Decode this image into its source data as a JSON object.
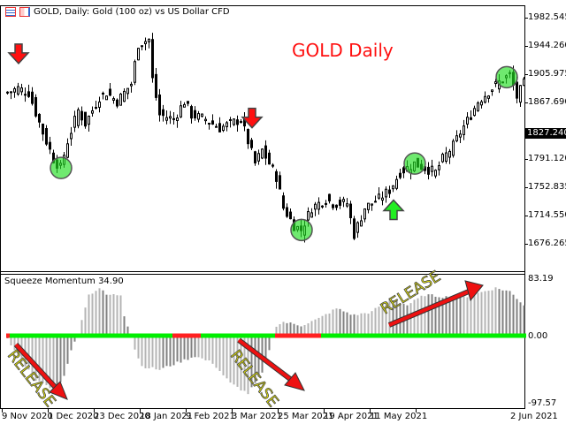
{
  "header": {
    "title": "GOLD, Daily:  Gold (100 oz) vs US Dollar CFD",
    "icons": [
      "chart-list-icon",
      "chart-settings-icon"
    ]
  },
  "annotation_title": "GOLD Daily",
  "price_axis": {
    "ticks": [
      "1982.545",
      "1944.260",
      "1905.975",
      "1867.690",
      "1791.120",
      "1752.835",
      "1714.550",
      "1676.265"
    ],
    "tick_values": [
      1982.545,
      1944.26,
      1905.975,
      1867.69,
      1791.12,
      1752.835,
      1714.55,
      1676.265
    ],
    "current_price": "1827.240"
  },
  "indicator": {
    "title": "Squeeze Momentum 34.90",
    "axis": {
      "max": "83.19",
      "zero": "0.00",
      "min": "-97.57"
    },
    "release_label": "RELEASE"
  },
  "date_axis": [
    "9 Nov 2020",
    "1 Dec 2020",
    "23 Dec 2020",
    "18 Jan 2021",
    "9 Feb 2021",
    "3 Mar 2021",
    "25 Mar 2021",
    "19 Apr 2021",
    "11 May 2021",
    "2 Jun 2021"
  ],
  "colors": {
    "squeeze_on": "#ff2020",
    "squeeze_off": "#00ee00",
    "signal_down": "#ff1010",
    "signal_up": "#22ee22",
    "histogram_light": "#b4b4b4",
    "histogram_dark": "#808080"
  },
  "chart_data": [
    {
      "type": "candlestick",
      "title": "GOLD, Daily",
      "ylim": [
        1660,
        1990
      ],
      "close_keypoints": [
        [
          0,
          1881
        ],
        [
          3,
          1887
        ],
        [
          6,
          1881
        ],
        [
          10,
          1827
        ],
        [
          13,
          1791
        ],
        [
          15,
          1779
        ],
        [
          17,
          1815
        ],
        [
          20,
          1857
        ],
        [
          22,
          1839
        ],
        [
          26,
          1875
        ],
        [
          28,
          1881
        ],
        [
          31,
          1869
        ],
        [
          35,
          1893
        ],
        [
          37,
          1947
        ],
        [
          40,
          1953
        ],
        [
          41,
          1899
        ],
        [
          43,
          1851
        ],
        [
          47,
          1845
        ],
        [
          50,
          1869
        ],
        [
          52,
          1851
        ],
        [
          56,
          1845
        ],
        [
          60,
          1833
        ],
        [
          63,
          1839
        ],
        [
          66,
          1845
        ],
        [
          68,
          1815
        ],
        [
          70,
          1785
        ],
        [
          72,
          1803
        ],
        [
          76,
          1767
        ],
        [
          78,
          1725
        ],
        [
          81,
          1701
        ],
        [
          83,
          1695
        ],
        [
          86,
          1725
        ],
        [
          90,
          1737
        ],
        [
          92,
          1731
        ],
        [
          96,
          1731
        ],
        [
          98,
          1689
        ],
        [
          101,
          1725
        ],
        [
          105,
          1737
        ],
        [
          108,
          1749
        ],
        [
          111,
          1773
        ],
        [
          115,
          1785
        ],
        [
          118,
          1779
        ],
        [
          121,
          1773
        ],
        [
          123,
          1791
        ],
        [
          126,
          1809
        ],
        [
          128,
          1827
        ],
        [
          131,
          1851
        ],
        [
          133,
          1869
        ],
        [
          137,
          1887
        ],
        [
          140,
          1899
        ],
        [
          142,
          1905
        ],
        [
          144,
          1875
        ],
        [
          146,
          1893
        ]
      ],
      "signals": [
        {
          "type": "sell",
          "bar": 3
        },
        {
          "type": "sell",
          "bar": 69
        },
        {
          "type": "buy",
          "bar": 109
        }
      ],
      "highlight_bars": [
        15,
        83,
        115,
        141
      ]
    },
    {
      "type": "bar",
      "title": "Squeeze Momentum 34.90",
      "ylim": [
        -97.57,
        83.19
      ],
      "momentum_keypoints": [
        [
          0,
          -5
        ],
        [
          3,
          -30
        ],
        [
          8,
          -65
        ],
        [
          13,
          -80
        ],
        [
          16,
          -60
        ],
        [
          18,
          -20
        ],
        [
          20,
          0
        ],
        [
          21,
          25
        ],
        [
          23,
          60
        ],
        [
          26,
          70
        ],
        [
          28,
          60
        ],
        [
          32,
          60
        ],
        [
          33,
          30
        ],
        [
          35,
          0
        ],
        [
          36,
          -20
        ],
        [
          38,
          -45
        ],
        [
          43,
          -50
        ],
        [
          48,
          -40
        ],
        [
          53,
          -30
        ],
        [
          58,
          -40
        ],
        [
          63,
          -70
        ],
        [
          68,
          -85
        ],
        [
          72,
          -55
        ],
        [
          74,
          -20
        ],
        [
          76,
          15
        ],
        [
          78,
          20
        ],
        [
          83,
          15
        ],
        [
          88,
          25
        ],
        [
          93,
          40
        ],
        [
          98,
          30
        ],
        [
          103,
          35
        ],
        [
          108,
          55
        ],
        [
          113,
          45
        ],
        [
          118,
          60
        ],
        [
          128,
          55
        ],
        [
          138,
          70
        ],
        [
          142,
          65
        ],
        [
          146,
          45
        ]
      ],
      "squeeze_segments": [
        {
          "state": "on",
          "from": 0,
          "to": 1
        },
        {
          "state": "off",
          "from": 1,
          "to": 47
        },
        {
          "state": "on",
          "from": 47,
          "to": 55
        },
        {
          "state": "off",
          "from": 55,
          "to": 76
        },
        {
          "state": "on",
          "from": 76,
          "to": 89
        },
        {
          "state": "off",
          "from": 89,
          "to": 146
        }
      ]
    }
  ]
}
